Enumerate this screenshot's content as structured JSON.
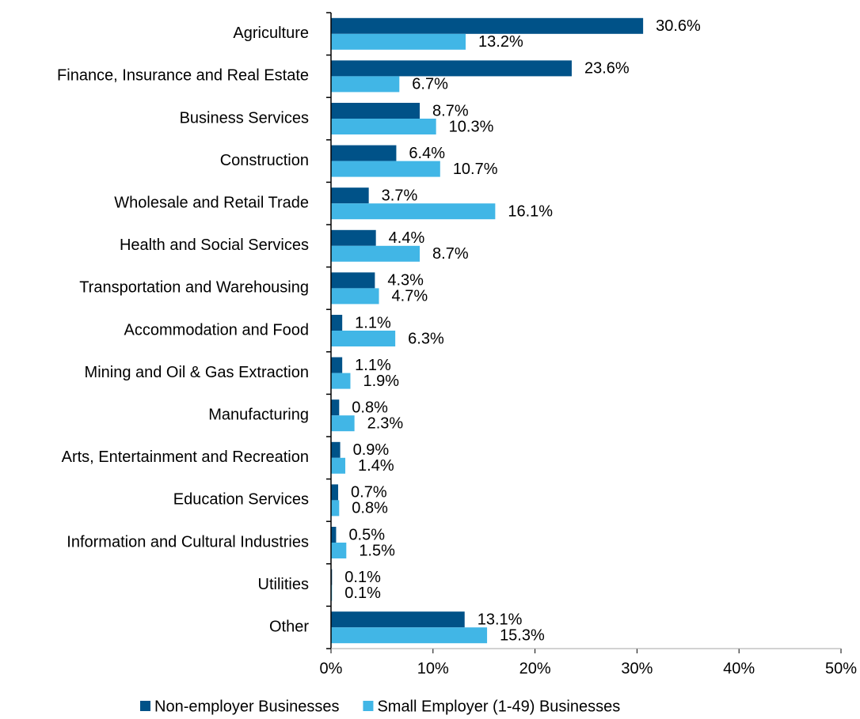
{
  "chart_data": {
    "type": "bar",
    "orientation": "horizontal",
    "categories": [
      "Agriculture",
      "Finance, Insurance and Real Estate",
      "Business Services",
      "Construction",
      "Wholesale and Retail Trade",
      "Health and Social Services",
      "Transportation and Warehousing",
      "Accommodation and Food",
      "Mining and Oil & Gas Extraction",
      "Manufacturing",
      "Arts, Entertainment and Recreation",
      "Education Services",
      "Information and Cultural Industries",
      "Utilities",
      "Other"
    ],
    "series": [
      {
        "name": "Non-employer Businesses",
        "color": "#005288",
        "values": [
          30.6,
          23.6,
          8.7,
          6.4,
          3.7,
          4.4,
          4.3,
          1.1,
          1.1,
          0.8,
          0.9,
          0.7,
          0.5,
          0.1,
          13.1
        ],
        "value_labels": [
          "30.6%",
          "23.6%",
          "8.7%",
          "6.4%",
          "3.7%",
          "4.4%",
          "4.3%",
          "1.1%",
          "1.1%",
          "0.8%",
          "0.9%",
          "0.7%",
          "0.5%",
          "0.1%",
          "13.1%"
        ]
      },
      {
        "name": "Small Employer (1-49) Businesses",
        "color": "#41b6e6",
        "values": [
          13.2,
          6.7,
          10.3,
          10.7,
          16.1,
          8.7,
          4.7,
          6.3,
          1.9,
          2.3,
          1.4,
          0.8,
          1.5,
          0.1,
          15.3
        ],
        "value_labels": [
          "13.2%",
          "6.7%",
          "10.3%",
          "10.7%",
          "16.1%",
          "8.7%",
          "4.7%",
          "6.3%",
          "1.9%",
          "2.3%",
          "1.4%",
          "0.8%",
          "1.5%",
          "0.1%",
          "15.3%"
        ]
      }
    ],
    "xlim": [
      0,
      50
    ],
    "xticks": [
      {
        "value": 0,
        "label": "0%"
      },
      {
        "value": 10,
        "label": "10%"
      },
      {
        "value": 20,
        "label": "20%"
      },
      {
        "value": 30,
        "label": "30%"
      },
      {
        "value": 40,
        "label": "40%"
      },
      {
        "value": 50,
        "label": "50%"
      }
    ],
    "legend": "bottom"
  }
}
